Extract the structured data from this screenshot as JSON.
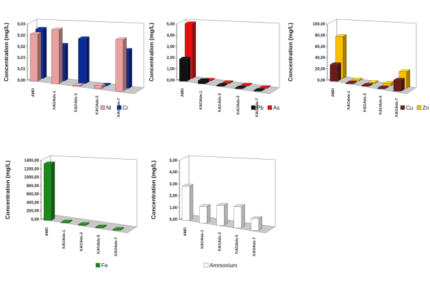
{
  "chart_data": [
    {
      "type": "bar",
      "title": "",
      "ylabel": "Concentration (mg/L)",
      "xlabel": "",
      "categories": [
        "AMD",
        "KAOAds-1",
        "KAOAds-3",
        "KAOAds-5",
        "KAOAds-7"
      ],
      "yticks": [
        "0,00",
        "0,01",
        "0,01",
        "0,02",
        "0,02",
        "0,03"
      ],
      "ylim": [
        0,
        0.025
      ],
      "series": [
        {
          "name": "Ni",
          "color": "#e8a0a0",
          "values": [
            0.021,
            0.024,
            0.0003,
            0.0015,
            0.023
          ]
        },
        {
          "name": "Cr",
          "color": "#0a2a9a",
          "values": [
            0.022,
            0.016,
            0.02,
            0.0,
            0.017
          ]
        }
      ],
      "legend": "bottom-right"
    },
    {
      "type": "bar",
      "title": "",
      "ylabel": "Concentration (mg/L)",
      "xlabel": "",
      "categories": [
        "AMD",
        "KAOAds-1",
        "KAOAds-3",
        "KAOAds-5",
        "KAOAds-7"
      ],
      "yticks": [
        "0,00",
        "1,00",
        "2,00",
        "3,00",
        "4,00",
        "5,00"
      ],
      "ylim": [
        0,
        5
      ],
      "series": [
        {
          "name": "Pb",
          "color": "#111111",
          "values": [
            2.0,
            0.3,
            0.05,
            0.05,
            0.05
          ]
        },
        {
          "name": "As",
          "color": "#e01010",
          "values": [
            4.9,
            0.05,
            0.05,
            0.05,
            0.05
          ]
        }
      ],
      "legend": "bottom-right"
    },
    {
      "type": "bar",
      "title": "",
      "ylabel": "Concentration (mg/L)",
      "xlabel": "",
      "categories": [
        "AMD",
        "KAOAds-1",
        "KAOAds-3",
        "KAOAds-5",
        "KAOAds-7"
      ],
      "yticks": [
        "0,00",
        "20,00",
        "40,00",
        "60,00",
        "80,00",
        "100,00"
      ],
      "ylim": [
        0,
        100
      ],
      "series": [
        {
          "name": "Cu",
          "color": "#6a1a1a",
          "values": [
            30,
            0.5,
            0.5,
            0.5,
            20
          ]
        },
        {
          "name": "Zn",
          "color": "#f8c000",
          "values": [
            75,
            1,
            1,
            5,
            30
          ]
        }
      ],
      "legend": "bottom-right"
    },
    {
      "type": "bar",
      "title": "",
      "ylabel": "Concentration (mg/L)",
      "xlabel": "",
      "categories": [
        "AMD",
        "KAOAds-1",
        "KAOAds-3",
        "KAOAds-5",
        "KAOAds-7"
      ],
      "yticks": [
        "0,00",
        "200,00",
        "400,00",
        "600,00",
        "800,00",
        "1000,00",
        "1200,00",
        "1400,00"
      ],
      "ylim": [
        0,
        1400
      ],
      "series": [
        {
          "name": "Fe",
          "color": "#1a8a1a",
          "values": [
            1350,
            2,
            2,
            2,
            2
          ]
        }
      ],
      "legend": "bottom-right"
    },
    {
      "type": "bar",
      "title": "",
      "ylabel": "Concentration (mg/L)",
      "xlabel": "",
      "categories": [
        "AMD",
        "KAOAds-1",
        "KAOAds-3",
        "KAOAds-5",
        "KAOAds-7"
      ],
      "yticks": [
        "0,00",
        "1,00",
        "2,00",
        "3,00",
        "4,00",
        "5,00"
      ],
      "ylim": [
        0,
        5
      ],
      "series": [
        {
          "name": "Ammonium",
          "color": "#ffffff",
          "values": [
            2.9,
            1.4,
            1.7,
            1.8,
            1.0
          ]
        }
      ],
      "legend": "bottom-right"
    }
  ]
}
